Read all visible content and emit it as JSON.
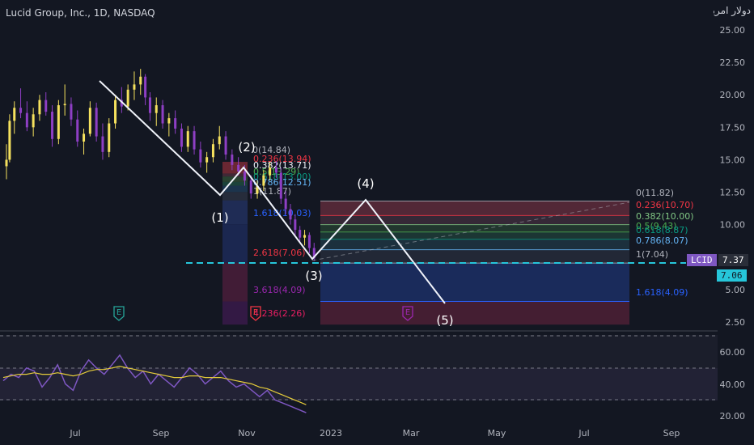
{
  "header": {
    "title": "Lucid Group, Inc., 1D, NASDAQ",
    "currency_label": "دولار امريكي"
  },
  "colors": {
    "background": "#131722",
    "candle_up": "#f5e15e",
    "candle_down": "#8e3fc4",
    "wave_line": "#f0f3fa",
    "price_line": "#26c6da",
    "rsi_line": "#7e57c2",
    "rsi_ma": "#e5cc3a"
  },
  "price_axis": {
    "ticks": [
      "25.00",
      "22.50",
      "20.00",
      "17.50",
      "15.00",
      "12.50",
      "10.00",
      "7.50",
      "5.00",
      "2.50"
    ],
    "ylim": [
      2.5,
      25.0
    ]
  },
  "rsi_axis": {
    "ticks": [
      "60.00",
      "40.00",
      "20.00"
    ]
  },
  "time_axis": {
    "ticks": [
      "Jul",
      "Sep",
      "Nov",
      "2023",
      "Mar",
      "May",
      "Jul",
      "Sep"
    ]
  },
  "price_tags": {
    "symbol": "LCID",
    "last": "7.37",
    "level": "7.06"
  },
  "waves": [
    "(1)",
    "(2)",
    "(3)",
    "(4)",
    "(5)"
  ],
  "fib_small": [
    {
      "label": "0(14.84)",
      "color": "#b2b5be"
    },
    {
      "label": "0.236(13.94)",
      "color": "#f23645"
    },
    {
      "label": "0.382(13.71)",
      "color": "#f0f3fa"
    },
    {
      "label": "0.5(13.29)",
      "color": "#4caf50"
    },
    {
      "label": "0.618(13.00)",
      "color": "#089981"
    },
    {
      "label": "0.786(12.51)",
      "color": "#64b5f6"
    },
    {
      "label": "1(11.87)",
      "color": "#b2b5be"
    },
    {
      "label": "1.618(10.03)",
      "color": "#2962ff"
    },
    {
      "label": "2.618(7.06)",
      "color": "#f23645"
    },
    {
      "label": "3.618(4.09)",
      "color": "#9c27b0"
    },
    {
      "label": "4.236(2.26)",
      "color": "#e91e63"
    }
  ],
  "fib_large": [
    {
      "label": "0(11.82)",
      "color": "#b2b5be"
    },
    {
      "label": "0.236(10.70)",
      "color": "#f23645"
    },
    {
      "label": "0.382(10.00)",
      "color": "#81c784"
    },
    {
      "label": "0.5(9.43)",
      "color": "#4caf50"
    },
    {
      "label": "0.618(8.87)",
      "color": "#089981"
    },
    {
      "label": "0.786(8.07)",
      "color": "#64b5f6"
    },
    {
      "label": "1(7.04)",
      "color": "#b2b5be"
    },
    {
      "label": "1.618(4.09)",
      "color": "#2962ff"
    }
  ],
  "event_markers": [
    "E",
    "E",
    "E"
  ],
  "chart_data": {
    "type": "candlestick",
    "series": [
      {
        "values": [
          [
            0,
            14.5,
            16.2,
            13.5,
            15.0
          ],
          [
            2,
            15.0,
            18.5,
            14.8,
            18.0
          ],
          [
            5,
            18.0,
            19.5,
            17.0,
            19.0
          ],
          [
            9,
            19.0,
            20.5,
            18.2,
            18.6
          ],
          [
            13,
            18.6,
            19.5,
            17.2,
            17.5
          ],
          [
            17,
            17.5,
            19.0,
            16.8,
            18.5
          ],
          [
            21,
            18.5,
            20.0,
            18.0,
            19.6
          ],
          [
            25,
            19.6,
            20.2,
            18.4,
            18.7
          ],
          [
            29,
            18.7,
            19.2,
            16.0,
            16.6
          ],
          [
            33,
            16.6,
            19.6,
            16.2,
            19.2
          ],
          [
            37,
            19.2,
            20.8,
            18.4,
            19.3
          ],
          [
            41,
            19.3,
            19.8,
            17.6,
            18.1
          ],
          [
            45,
            18.1,
            18.8,
            16.0,
            16.4
          ],
          [
            49,
            16.4,
            17.4,
            15.4,
            17.0
          ],
          [
            53,
            17.0,
            19.5,
            16.8,
            19.0
          ],
          [
            57,
            19.0,
            19.4,
            16.4,
            16.8
          ],
          [
            61,
            16.8,
            17.8,
            15.0,
            15.6
          ],
          [
            65,
            15.6,
            18.2,
            15.2,
            17.8
          ],
          [
            69,
            17.8,
            20.0,
            17.4,
            19.6
          ],
          [
            73,
            19.6,
            20.6,
            18.6,
            19.1
          ],
          [
            77,
            19.1,
            20.8,
            18.8,
            20.4
          ],
          [
            81,
            20.4,
            21.8,
            19.6,
            20.8
          ],
          [
            85,
            20.8,
            22.0,
            20.0,
            21.4
          ],
          [
            88,
            21.4,
            21.6,
            19.2,
            19.8
          ],
          [
            91,
            19.8,
            20.2,
            18.0,
            18.6
          ],
          [
            95,
            18.6,
            19.8,
            17.6,
            19.2
          ],
          [
            99,
            19.2,
            19.6,
            17.4,
            17.8
          ],
          [
            103,
            17.8,
            18.6,
            16.8,
            18.2
          ],
          [
            107,
            18.2,
            18.8,
            17.0,
            17.4
          ],
          [
            111,
            17.4,
            17.8,
            15.6,
            16.0
          ],
          [
            115,
            16.0,
            17.6,
            15.6,
            17.2
          ],
          [
            119,
            17.2,
            17.6,
            15.4,
            15.8
          ],
          [
            123,
            15.8,
            16.4,
            14.4,
            14.8
          ],
          [
            127,
            14.8,
            15.6,
            14.0,
            15.2
          ],
          [
            131,
            15.2,
            16.6,
            14.8,
            16.2
          ],
          [
            135,
            16.2,
            17.6,
            15.8,
            16.8
          ],
          [
            139,
            16.8,
            17.2,
            15.0,
            15.4
          ],
          [
            143,
            15.4,
            15.8,
            14.2,
            14.6
          ],
          [
            147,
            14.6,
            15.2,
            13.8,
            14.1
          ],
          [
            151,
            14.1,
            14.6,
            13.0,
            13.4
          ],
          [
            155,
            13.4,
            13.8,
            12.0,
            12.4
          ],
          [
            159,
            12.4,
            13.4,
            12.0,
            13.0
          ],
          [
            163,
            13.0,
            14.2,
            12.6,
            13.8
          ],
          [
            167,
            13.8,
            14.8,
            13.4,
            14.4
          ],
          [
            171,
            14.4,
            14.9,
            13.6,
            14.0
          ],
          [
            174,
            14.0,
            14.4,
            11.6,
            12.0
          ],
          [
            177,
            12.0,
            12.6,
            10.8,
            11.2
          ],
          [
            180,
            11.2,
            11.6,
            10.0,
            10.4
          ],
          [
            183,
            10.4,
            10.8,
            9.2,
            9.6
          ],
          [
            186,
            9.6,
            9.9,
            8.6,
            9.0
          ],
          [
            189,
            9.0,
            9.6,
            8.4,
            9.2
          ],
          [
            192,
            9.2,
            9.4,
            7.8,
            8.2
          ],
          [
            195,
            8.2,
            8.6,
            7.2,
            7.4
          ]
        ]
      }
    ],
    "x_unit": "trading day index",
    "ohlc_order": [
      "open",
      "high",
      "low",
      "close"
    ],
    "ylim": [
      2.5,
      25.0
    ],
    "xlabel": "",
    "ylabel": ""
  }
}
